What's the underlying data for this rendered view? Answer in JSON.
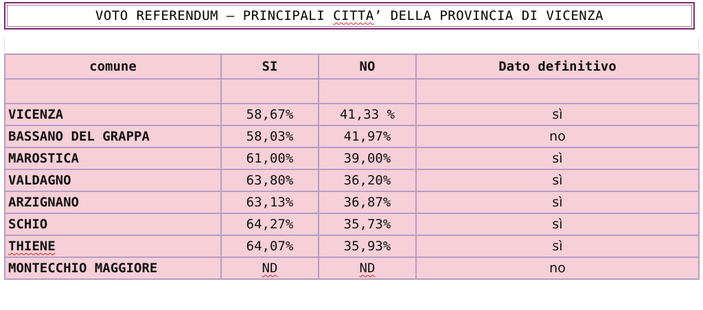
{
  "title": {
    "prefix": "VOTO REFERENDUM – PRINCIPALI ",
    "flagged": "CITTA",
    "suffix": "’ DELLA PROVINCIA DI VICENZA"
  },
  "table": {
    "headers": [
      "comune",
      "SI",
      "NO",
      "Dato definitivo"
    ],
    "rows": [
      {
        "comune": "VICENZA",
        "si": "58,67%",
        "no": "41,33 %",
        "definitivo": "sì"
      },
      {
        "comune": "BASSANO DEL GRAPPA",
        "si": "58,03%",
        "no": "41,97%",
        "definitivo": "no"
      },
      {
        "comune": "MAROSTICA",
        "si": "61,00%",
        "no": "39,00%",
        "definitivo": "sì"
      },
      {
        "comune": "VALDAGNO",
        "si": "63,80%",
        "no": "36,20%",
        "definitivo": "sì"
      },
      {
        "comune": "ARZIGNANO",
        "si": "63,13%",
        "no": "36,87%",
        "definitivo": "sì"
      },
      {
        "comune": "SCHIO",
        "si": "64,27%",
        "no": "35,73%",
        "definitivo": "sì"
      },
      {
        "comune": "THIENE",
        "si": "64,07%",
        "no": "35,93%",
        "definitivo": "sì"
      },
      {
        "comune": "MONTECCHIO MAGGIORE",
        "si": "ND",
        "no": "ND",
        "definitivo": "no"
      }
    ]
  },
  "colors": {
    "cell_background": "#f6cfd7",
    "grid_border": "#b79cc6",
    "title_border": "#7a2a6e"
  }
}
